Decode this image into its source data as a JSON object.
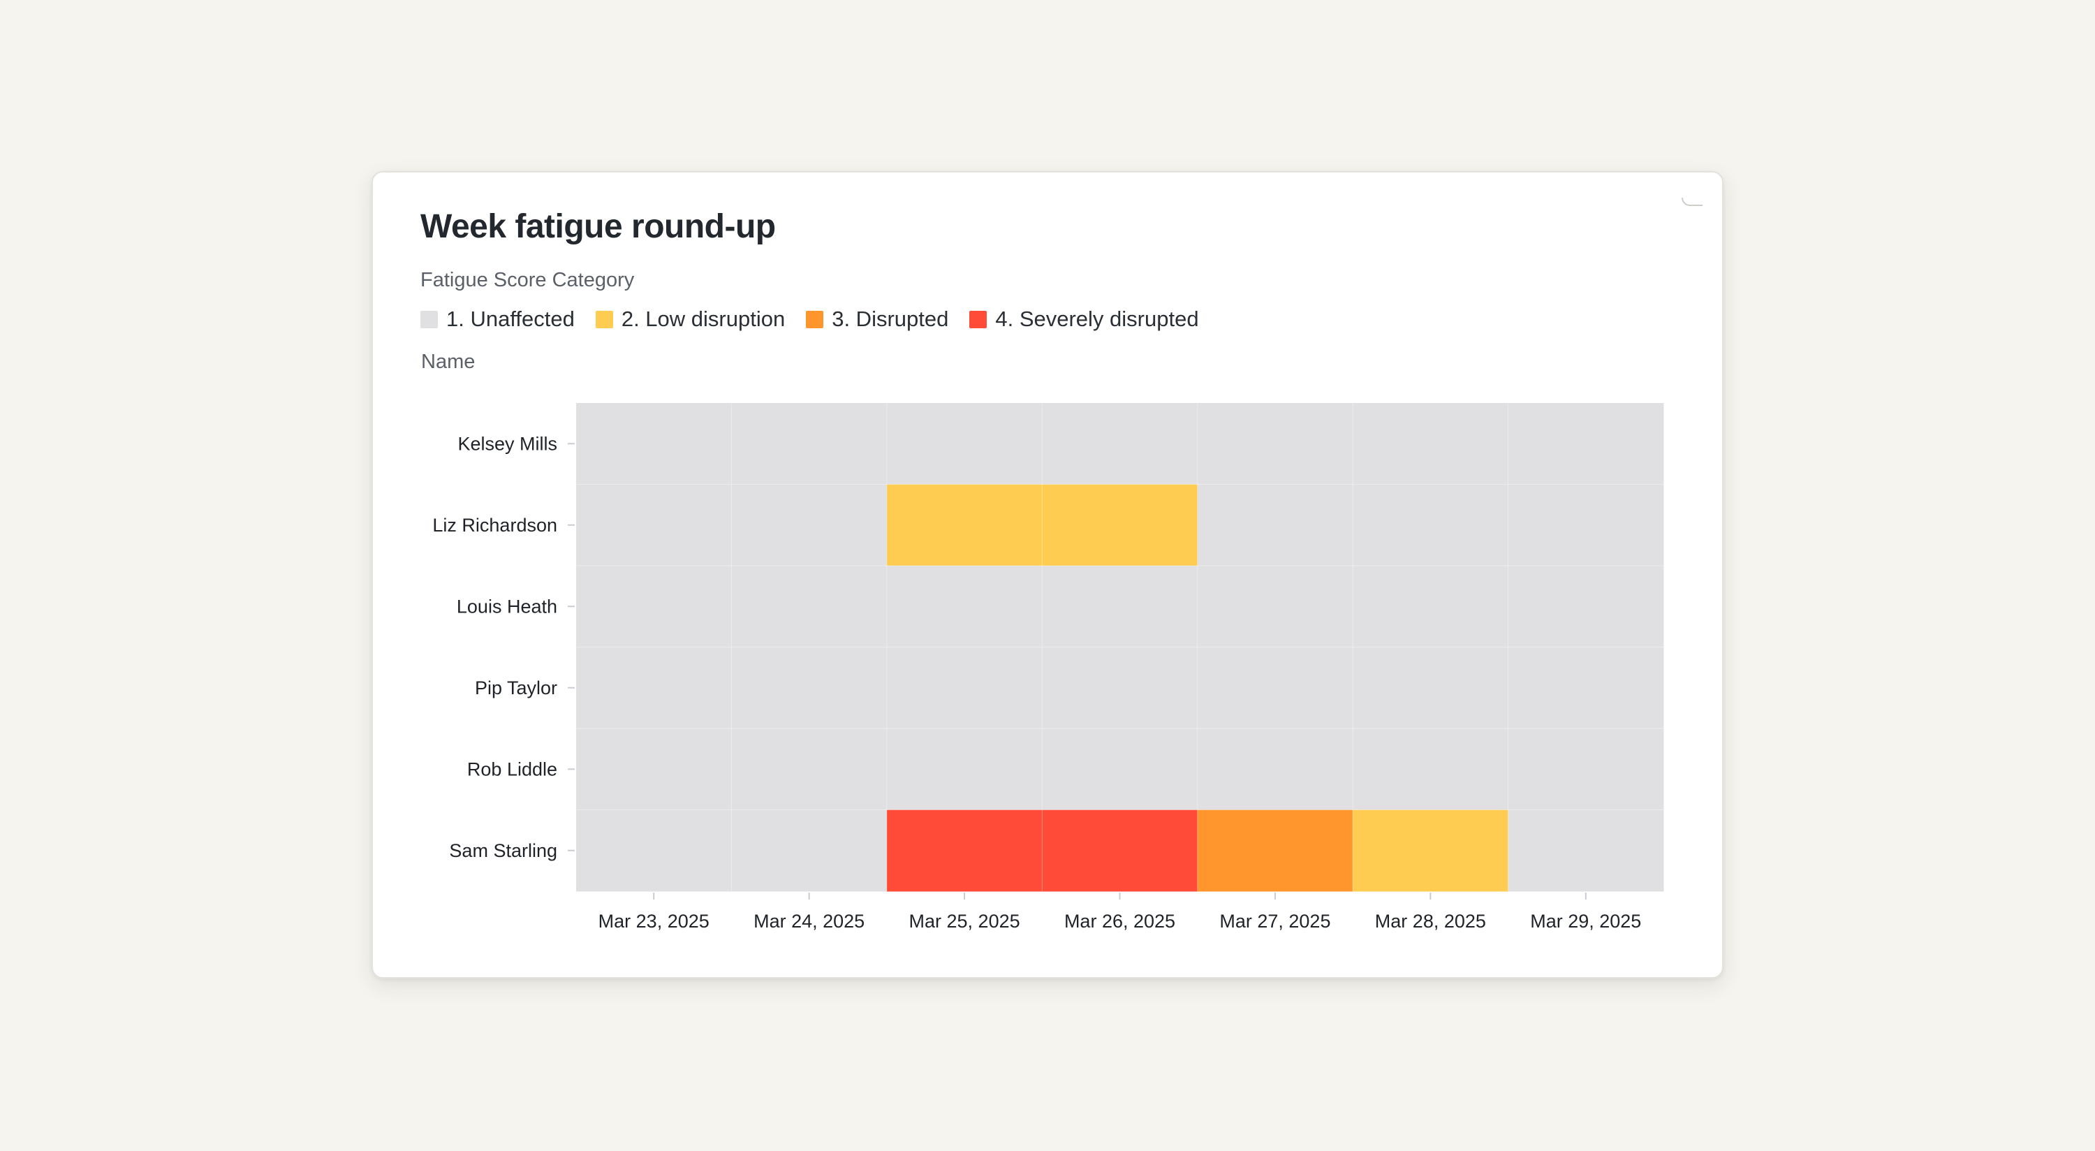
{
  "card": {
    "title": "Week fatigue round-up"
  },
  "legend": {
    "title": "Fatigue Score Category",
    "items": [
      {
        "label": "1. Unaffected",
        "color": "#e0e0e2"
      },
      {
        "label": "2. Low disruption",
        "color": "#ffcc52"
      },
      {
        "label": "3. Disrupted",
        "color": "#ff962d"
      },
      {
        "label": "4. Severely disrupted",
        "color": "#ff4b38"
      }
    ]
  },
  "chart_data": {
    "type": "heatmap",
    "title": "Week fatigue round-up",
    "ylabel": "Name",
    "xlabel": "",
    "legend_title": "Fatigue Score Category",
    "legend_position": "top-left",
    "categories_x": [
      "Mar 23, 2025",
      "Mar 24, 2025",
      "Mar 25, 2025",
      "Mar 26, 2025",
      "Mar 27, 2025",
      "Mar 28, 2025",
      "Mar 29, 2025"
    ],
    "categories_y": [
      "Kelsey Mills",
      "Liz Richardson",
      "Louis Heath",
      "Pip Taylor",
      "Rob Liddle",
      "Sam Starling"
    ],
    "levels": [
      "1. Unaffected",
      "2. Low disruption",
      "3. Disrupted",
      "4. Severely disrupted"
    ],
    "level_colors": [
      "#e0e0e2",
      "#ffcc52",
      "#ff962d",
      "#ff4b38"
    ],
    "values": [
      [
        1,
        1,
        1,
        1,
        1,
        1,
        1
      ],
      [
        1,
        1,
        2,
        2,
        1,
        1,
        1
      ],
      [
        1,
        1,
        1,
        1,
        1,
        1,
        1
      ],
      [
        1,
        1,
        1,
        1,
        1,
        1,
        1
      ],
      [
        1,
        1,
        1,
        1,
        1,
        1,
        1
      ],
      [
        1,
        1,
        4,
        4,
        3,
        2,
        1
      ]
    ]
  }
}
